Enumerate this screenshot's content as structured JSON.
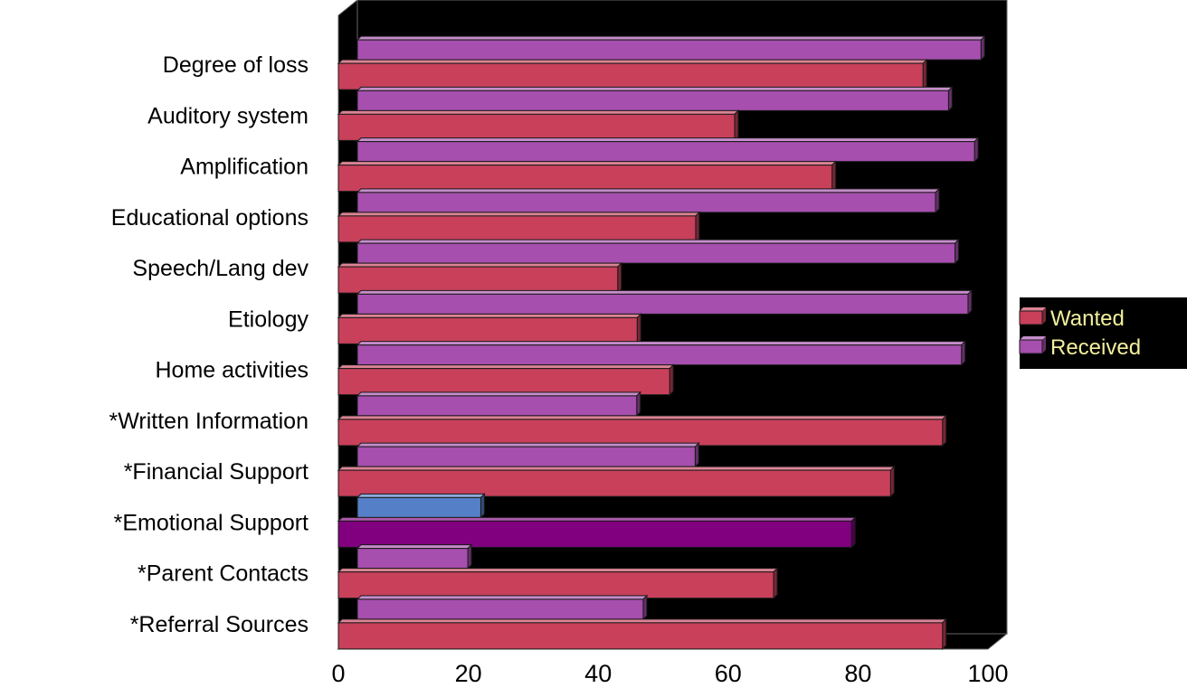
{
  "chart_data": {
    "type": "bar",
    "orientation": "horizontal",
    "three_d": true,
    "categories": [
      "Degree of loss",
      "Auditory system",
      "Amplification",
      "Educational options",
      "Speech/Lang dev",
      "Etiology",
      "Home activities",
      "*Written Information",
      "*Financial Support",
      "*Emotional Support",
      "*Parent Contacts",
      "*Referral Sources"
    ],
    "series": [
      {
        "name": "Wanted",
        "values": [
          90,
          61,
          76,
          55,
          43,
          46,
          51,
          93,
          85,
          79,
          67,
          93
        ]
      },
      {
        "name": "Received",
        "values": [
          96,
          91,
          95,
          89,
          92,
          94,
          93,
          43,
          52,
          19,
          17,
          44
        ]
      }
    ],
    "highlight": {
      "category_index": 9,
      "wanted_color": "#800080",
      "received_color": "#5580c8"
    },
    "colors": {
      "Wanted": "#c8405a",
      "Received": "#a64fae"
    },
    "xlim": [
      0,
      100
    ],
    "xticks": [
      "0",
      "20",
      "40",
      "60",
      "80",
      "100"
    ],
    "background": "#000000",
    "legend_position": "right"
  }
}
